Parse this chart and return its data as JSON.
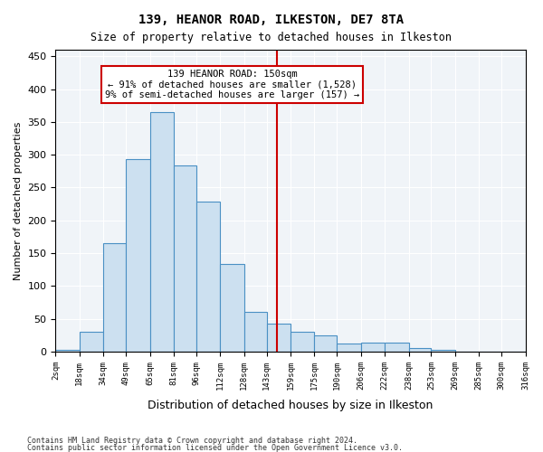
{
  "title": "139, HEANOR ROAD, ILKESTON, DE7 8TA",
  "subtitle": "Size of property relative to detached houses in Ilkeston",
  "xlabel": "Distribution of detached houses by size in Ilkeston",
  "ylabel": "Number of detached properties",
  "footer1": "Contains HM Land Registry data © Crown copyright and database right 2024.",
  "footer2": "Contains public sector information licensed under the Open Government Licence v3.0.",
  "annotation_title": "139 HEANOR ROAD: 150sqm",
  "annotation_line1": "← 91% of detached houses are smaller (1,528)",
  "annotation_line2": "9% of semi-detached houses are larger (157) →",
  "property_size": 150,
  "bar_color": "#cce0f0",
  "bar_edge_color": "#4a90c4",
  "vline_color": "#cc0000",
  "annotation_box_color": "#cc0000",
  "bg_color": "#f0f4f8",
  "bins": [
    2,
    18,
    34,
    49,
    65,
    81,
    96,
    112,
    128,
    143,
    159,
    175,
    190,
    206,
    222,
    238,
    253,
    269,
    285,
    300,
    316
  ],
  "values": [
    2,
    30,
    165,
    293,
    365,
    283,
    228,
    133,
    61,
    42,
    30,
    25,
    12,
    13,
    13,
    5,
    2,
    0,
    0,
    0
  ],
  "ylim": [
    0,
    460
  ],
  "yticks": [
    0,
    50,
    100,
    150,
    200,
    250,
    300,
    350,
    400,
    450
  ]
}
